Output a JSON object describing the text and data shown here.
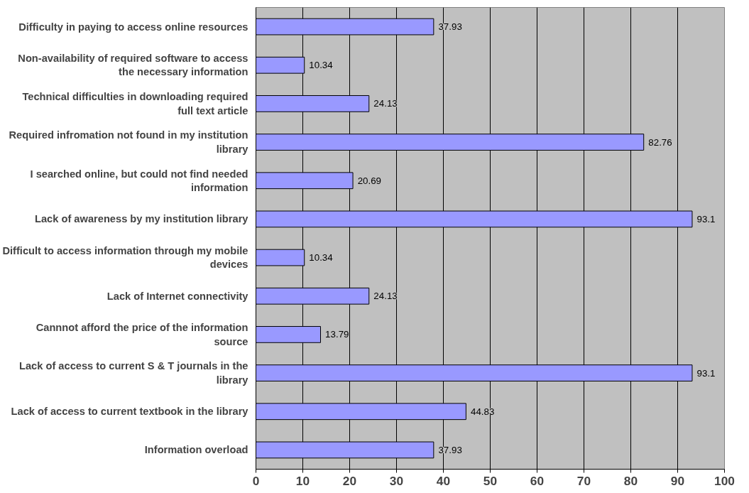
{
  "chart_data": {
    "type": "bar",
    "orientation": "horizontal",
    "categories": [
      "Difficulty in paying to access online resources",
      "Non-availability of required software to access the necessary information",
      "Technical difficulties in downloading required full text article",
      "Required infromation not found in my institution library",
      "I searched online, but could not find needed information",
      "Lack of awareness by my institution library",
      "Difficult to access information through my mobile devices",
      "Lack of Internet connectivity",
      "Cannnot afford the price of the information source",
      "Lack of access to current S & T journals in the library",
      "Lack of access to current textbook in the library",
      "Information overload"
    ],
    "values": [
      37.93,
      10.34,
      24.13,
      82.76,
      20.69,
      93.1,
      10.34,
      24.13,
      13.79,
      93.1,
      44.83,
      37.93
    ],
    "color": "#9999ff",
    "xlim": [
      0,
      100
    ],
    "xticks": [
      0,
      10,
      20,
      30,
      40,
      50,
      60,
      70,
      80,
      90,
      100
    ],
    "grid": "x",
    "data_labels": true
  }
}
